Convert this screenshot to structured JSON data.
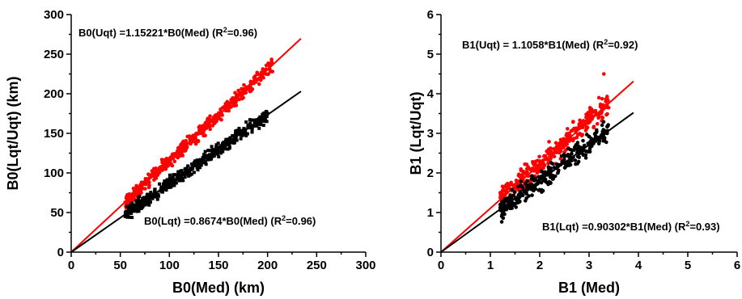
{
  "chart_data": [
    {
      "type": "scatter",
      "title": "",
      "xlabel": "B0(Med) (km)",
      "ylabel": "B0(Lqt/Uqt)  (km)",
      "xlim": [
        0,
        300
      ],
      "ylim": [
        0,
        300
      ],
      "xticks": [
        "0",
        "50",
        "100",
        "150",
        "200",
        "250",
        "300"
      ],
      "yticks": [
        "0",
        "50",
        "100",
        "150",
        "200",
        "250",
        "300"
      ],
      "grid": false,
      "annotations": [
        {
          "id": "uqt",
          "parts": [
            "B0(Uqt) =1.15221*B0(Med)  (R",
            "2",
            "=0.96)"
          ]
        },
        {
          "id": "lqt",
          "parts": [
            "B0(Lqt) =0.8674*B0(Med) (R",
            "2",
            "=0.96)"
          ]
        }
      ],
      "series": [
        {
          "color": "#ff0000",
          "marker": "circle",
          "x_range": [
            55,
            205
          ],
          "slope": 1.15221,
          "fit_x_end": 234,
          "points": [
            [
              55,
              63
            ],
            [
              62,
              72
            ],
            [
              70,
              80
            ],
            [
              78,
              92
            ],
            [
              85,
              97
            ],
            [
              92,
              108
            ],
            [
              100,
              118
            ],
            [
              108,
              125
            ],
            [
              115,
              136
            ],
            [
              122,
              145
            ],
            [
              130,
              150
            ],
            [
              138,
              160
            ],
            [
              145,
              170
            ],
            [
              152,
              175
            ],
            [
              160,
              185
            ],
            [
              168,
              193
            ],
            [
              175,
              200
            ],
            [
              182,
              210
            ],
            [
              190,
              218
            ],
            [
              198,
              225
            ],
            [
              205,
              228
            ]
          ]
        },
        {
          "color": "#000000",
          "marker": "square",
          "x_range": [
            55,
            200
          ],
          "slope": 0.8674,
          "fit_x_end": 234,
          "points": [
            [
              55,
              45
            ],
            [
              62,
              52
            ],
            [
              70,
              60
            ],
            [
              78,
              67
            ],
            [
              85,
              72
            ],
            [
              92,
              80
            ],
            [
              100,
              87
            ],
            [
              108,
              92
            ],
            [
              115,
              100
            ],
            [
              122,
              106
            ],
            [
              130,
              112
            ],
            [
              138,
              120
            ],
            [
              145,
              126
            ],
            [
              152,
              133
            ],
            [
              160,
              138
            ],
            [
              168,
              146
            ],
            [
              175,
              152
            ],
            [
              182,
              158
            ],
            [
              190,
              166
            ],
            [
              198,
              172
            ],
            [
              200,
              175
            ]
          ]
        }
      ]
    },
    {
      "type": "scatter",
      "title": "",
      "xlabel": "B1 (Med)",
      "ylabel": "B1 (Lqt/Uqt)",
      "xlim": [
        0,
        6
      ],
      "ylim": [
        0,
        6
      ],
      "xticks": [
        "0",
        "1",
        "2",
        "3",
        "4",
        "5",
        "6"
      ],
      "yticks": [
        "0",
        "1",
        "2",
        "3",
        "4",
        "5",
        "6"
      ],
      "grid": false,
      "annotations": [
        {
          "id": "uqt",
          "parts": [
            "B1(Uqt) = 1.1058*B1(Med)  (R",
            "2",
            "=0.92)"
          ]
        },
        {
          "id": "lqt",
          "parts": [
            "B1(Lqt) =0.90302*B1(Med) (R",
            "2",
            "=0.93)"
          ]
        }
      ],
      "series": [
        {
          "color": "#ff0000",
          "marker": "circle",
          "x_range": [
            1.2,
            3.4
          ],
          "slope": 1.1058,
          "fit_x_end": 3.9,
          "points": [
            [
              1.2,
              1.5
            ],
            [
              1.4,
              1.7
            ],
            [
              1.6,
              1.9
            ],
            [
              1.8,
              2.1
            ],
            [
              2.0,
              2.3
            ],
            [
              2.2,
              2.5
            ],
            [
              2.4,
              2.7
            ],
            [
              2.6,
              3.0
            ],
            [
              2.8,
              3.2
            ],
            [
              3.0,
              3.4
            ],
            [
              3.2,
              3.9
            ],
            [
              3.3,
              4.5
            ]
          ]
        },
        {
          "color": "#000000",
          "marker": "circle",
          "x_range": [
            1.2,
            3.4
          ],
          "slope": 0.90302,
          "fit_x_end": 3.9,
          "points": [
            [
              1.2,
              1.2
            ],
            [
              1.4,
              1.3
            ],
            [
              1.6,
              1.5
            ],
            [
              1.8,
              1.7
            ],
            [
              2.0,
              1.85
            ],
            [
              2.2,
              2.0
            ],
            [
              2.4,
              2.2
            ],
            [
              2.6,
              2.4
            ],
            [
              2.8,
              2.6
            ],
            [
              3.0,
              2.75
            ],
            [
              3.2,
              2.9
            ],
            [
              3.3,
              3.05
            ]
          ]
        }
      ]
    }
  ]
}
